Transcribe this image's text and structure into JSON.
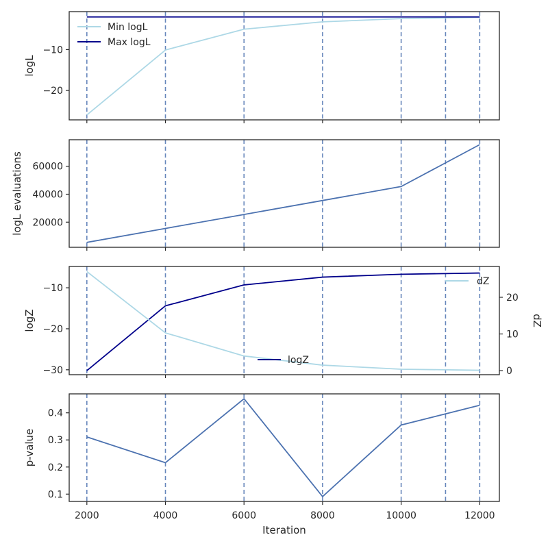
{
  "chart_data": [
    {
      "type": "line",
      "ylabel": "logL",
      "x": [
        2000,
        4000,
        6000,
        8000,
        10000,
        12000
      ],
      "series": [
        {
          "name": "Min logL",
          "color": "#add8e6",
          "values": [
            -26.0,
            -10.1,
            -5.0,
            -3.2,
            -2.4,
            -2.1
          ]
        },
        {
          "name": "Max logL",
          "color": "#00008b",
          "values": [
            -2.0,
            -2.0,
            -2.0,
            -2.0,
            -2.0,
            -2.0
          ]
        }
      ],
      "yticks": [
        -10,
        -20
      ],
      "ylim": [
        -27.2,
        -0.7
      ],
      "legend": "top-left"
    },
    {
      "type": "line",
      "ylabel": "logL evaluations",
      "x": [
        2000,
        4000,
        6000,
        8000,
        10000,
        12000
      ],
      "series": [
        {
          "color": "#4c72b0",
          "values": [
            5500,
            15500,
            25500,
            35500,
            45500,
            75500
          ]
        }
      ],
      "yticks": [
        20000,
        40000,
        60000
      ],
      "ylim": [
        2000,
        79000
      ]
    },
    {
      "type": "line",
      "ylabel": "logZ",
      "ylabel_right": "dZ",
      "x": [
        2000,
        4000,
        6000,
        8000,
        10000,
        12000
      ],
      "series": [
        {
          "name": "logZ",
          "color": "#00008b",
          "axis": "left",
          "values": [
            -30.2,
            -14.4,
            -9.3,
            -7.4,
            -6.7,
            -6.4
          ]
        },
        {
          "name": "dZ",
          "color": "#add8e6",
          "axis": "right",
          "values": [
            27.0,
            10.3,
            4.0,
            1.5,
            0.4,
            0.1
          ]
        }
      ],
      "yticks": [
        -10,
        -20,
        -30
      ],
      "ylim": [
        -31.2,
        -4.8
      ],
      "yticks_right": [
        0,
        10,
        20
      ],
      "ylim_right": [
        -1.1,
        28.4
      ],
      "legend_left": "lower-center",
      "legend_right": "upper-right"
    },
    {
      "type": "line",
      "ylabel": "p-value",
      "xlabel": "Iteration",
      "x": [
        2000,
        4000,
        6000,
        8000,
        10000,
        12000
      ],
      "series": [
        {
          "color": "#4c72b0",
          "values": [
            0.311,
            0.216,
            0.452,
            0.091,
            0.355,
            0.428
          ]
        }
      ],
      "yticks": [
        0.1,
        0.2,
        0.3,
        0.4
      ],
      "ylim": [
        0.073,
        0.47
      ]
    }
  ],
  "shared_x": {
    "xlim": [
      1550,
      12500
    ],
    "xticks": [
      2000,
      4000,
      6000,
      8000,
      10000,
      12000
    ],
    "vlines": [
      2000,
      4000,
      6000,
      8000,
      10000,
      11130,
      12000
    ],
    "vline_color": "#4c72b0"
  }
}
